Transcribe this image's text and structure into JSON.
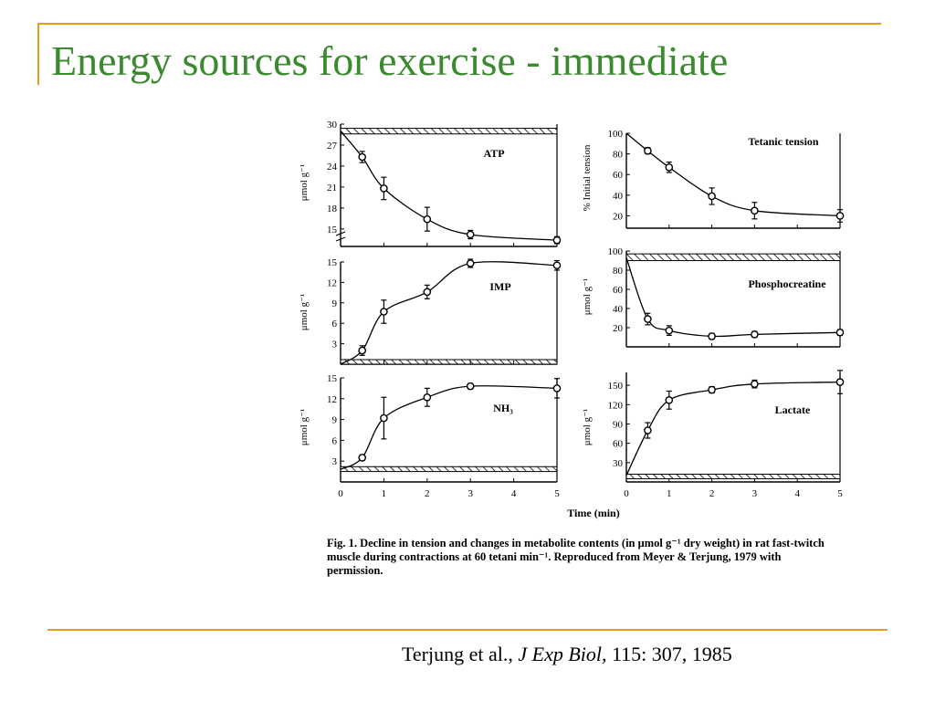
{
  "slide": {
    "title": "Energy sources for exercise - immediate",
    "citation": {
      "authors": "Terjung et al., ",
      "journal": "J Exp Biol,",
      "ref": " 115: 307, 1985"
    },
    "caption": "Fig. 1.  Decline in tension and changes in metabolite contents (in μmol g⁻¹ dry weight) in rat fast-twitch muscle during contractions at 60 tetani min⁻¹. Reproduced from Meyer & Terjung, 1979 with permission.",
    "x_axis_label": "Time (min)"
  },
  "chart_data": [
    {
      "type": "line",
      "id": "atp",
      "series_label": "ATP",
      "ylabel": "μmol g⁻¹",
      "ylim": [
        12.5,
        30
      ],
      "yticks": [
        15,
        18,
        21,
        24,
        27,
        30
      ],
      "xlim": [
        0,
        5
      ],
      "axis_break": true,
      "hatched_band": [
        28.6,
        29.4
      ],
      "x": [
        0.5,
        1,
        2,
        3,
        5
      ],
      "y": [
        25.3,
        20.8,
        16.4,
        14.2,
        13.4
      ],
      "err": [
        0.8,
        1.6,
        1.7,
        0.6,
        0.5
      ],
      "curve_start": [
        0,
        29
      ]
    },
    {
      "type": "line",
      "id": "tension",
      "series_label": "Tetanic tension",
      "ylabel": "% Initial tension",
      "ylim": [
        8,
        100
      ],
      "yticks": [
        20,
        40,
        60,
        80,
        100
      ],
      "xlim": [
        0,
        5
      ],
      "x": [
        0.5,
        1,
        2,
        3,
        5
      ],
      "y": [
        83,
        67,
        39,
        25,
        20
      ],
      "err": [
        3,
        5,
        8,
        8,
        6
      ],
      "curve_start": [
        0,
        100
      ]
    },
    {
      "type": "line",
      "id": "imp",
      "series_label": "IMP",
      "ylabel": "μmol g⁻¹",
      "ylim": [
        0,
        15
      ],
      "yticks": [
        3,
        6,
        9,
        12,
        15
      ],
      "xlim": [
        0,
        5
      ],
      "hatched_band": [
        0,
        0.3
      ],
      "x": [
        0.5,
        1,
        2,
        3,
        5
      ],
      "y": [
        2,
        7.7,
        10.6,
        14.8,
        14.5
      ],
      "err": [
        0.7,
        1.7,
        1,
        0.6,
        0.7
      ],
      "curve_start": [
        0,
        0
      ]
    },
    {
      "type": "line",
      "id": "pcr",
      "series_label": "Phosphocreatine",
      "ylabel": "μmol g⁻¹",
      "ylim": [
        0,
        100
      ],
      "yticks": [
        20,
        40,
        60,
        80,
        100
      ],
      "xlim": [
        0,
        5
      ],
      "hatched_band": [
        90,
        97
      ],
      "x": [
        0.5,
        1,
        2,
        3,
        5
      ],
      "y": [
        29,
        17,
        11,
        13,
        15
      ],
      "err": [
        6,
        5,
        3,
        3,
        3
      ],
      "curve_start": [
        0,
        93
      ]
    },
    {
      "type": "line",
      "id": "nh3",
      "series_label": "NH₃",
      "ylabel": "μmol g⁻¹",
      "ylim": [
        0,
        15
      ],
      "yticks": [
        3,
        6,
        9,
        12,
        15
      ],
      "xlim": [
        0,
        5
      ],
      "xticks": [
        0,
        1,
        2,
        3,
        4,
        5
      ],
      "hatched_band": [
        1.5,
        2.2
      ],
      "x": [
        0.5,
        1,
        2,
        3,
        5
      ],
      "y": [
        3.5,
        9.2,
        12.2,
        13.8,
        13.5
      ],
      "err": [
        0.4,
        3,
        1.3,
        0.4,
        1.4
      ],
      "curve_start": [
        0,
        1.8
      ]
    },
    {
      "type": "line",
      "id": "lactate",
      "series_label": "Lactate",
      "ylabel": "μmol g⁻¹",
      "ylim": [
        0,
        170
      ],
      "yticks": [
        30,
        60,
        90,
        120,
        150
      ],
      "xlim": [
        0,
        5
      ],
      "xticks": [
        0,
        1,
        2,
        3,
        4,
        5
      ],
      "hatched_band": [
        5,
        12
      ],
      "x": [
        0.5,
        1,
        2,
        3,
        5
      ],
      "y": [
        80,
        127,
        143,
        152,
        155
      ],
      "err": [
        12,
        14,
        5,
        6,
        18
      ],
      "curve_start": [
        0,
        10
      ]
    }
  ]
}
